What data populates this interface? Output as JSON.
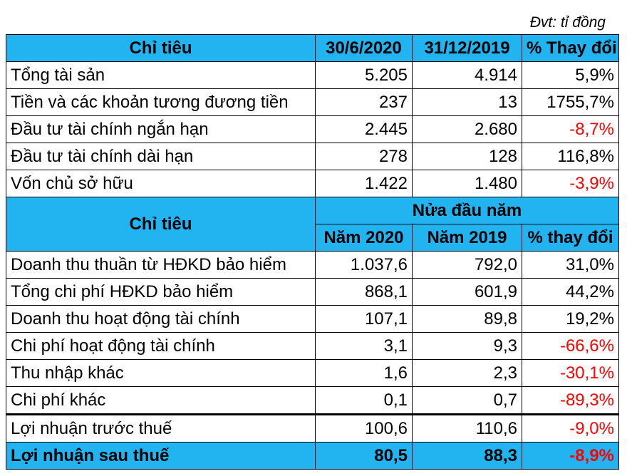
{
  "unit_note": "Đvt: tỉ đồng",
  "section1": {
    "header": {
      "label": "Chỉ tiêu",
      "col1": "30/6/2020",
      "col2": "31/12/2019",
      "col3": "% Thay đổi"
    },
    "rows": [
      {
        "label": "Tổng tài sản",
        "v1": "5.205",
        "v2": "4.914",
        "pct": "5,9%"
      },
      {
        "label": "Tiền và các khoản tương đương tiền",
        "v1": "237",
        "v2": "13",
        "pct": "1755,7%"
      },
      {
        "label": "Đầu tư tài chính ngắn hạn",
        "v1": "2.445",
        "v2": "2.680",
        "pct": "-8,7%"
      },
      {
        "label": "Đầu tư tài chính dài hạn",
        "v1": "278",
        "v2": "128",
        "pct": "116,8%"
      },
      {
        "label": "Vốn chủ sở hữu",
        "v1": "1.422",
        "v2": "1.480",
        "pct": "-3,9%"
      }
    ]
  },
  "section2": {
    "header": {
      "label": "Chỉ tiêu",
      "group": "Nửa đầu năm",
      "col1": "Năm 2020",
      "col2": "Năm 2019",
      "col3": "% thay đổi"
    },
    "rows": [
      {
        "label": "Doanh thu thuần từ HĐKD bảo hiểm",
        "v1": "1.037,6",
        "v2": "792,0",
        "pct": "31,0%"
      },
      {
        "label": "Tổng chi phí HĐKD bảo hiểm",
        "v1": "868,1",
        "v2": "601,9",
        "pct": "44,2%"
      },
      {
        "label": "Doanh thu hoạt động tài chính",
        "v1": "107,1",
        "v2": "89,8",
        "pct": "19,2%"
      },
      {
        "label": "Chi phí hoạt động tài chính",
        "v1": "3,1",
        "v2": "9,3",
        "pct": "-66,6%"
      },
      {
        "label": "Thu nhập khác",
        "v1": "1,6",
        "v2": "2,3",
        "pct": "-30,1%"
      },
      {
        "label": "Chi phí khác",
        "v1": "0,1",
        "v2": "0,7",
        "pct": "-89,3%"
      },
      {
        "label": "Lợi nhuận trước thuế",
        "v1": "100,6",
        "v2": "110,6",
        "pct": "-9,0%"
      },
      {
        "label": "Lợi nhuận sau thuế",
        "v1": "80,5",
        "v2": "88,3",
        "pct": "-8,9%"
      }
    ]
  },
  "colors": {
    "header_bg": "#22b4f0",
    "negative": "#ff0000"
  }
}
